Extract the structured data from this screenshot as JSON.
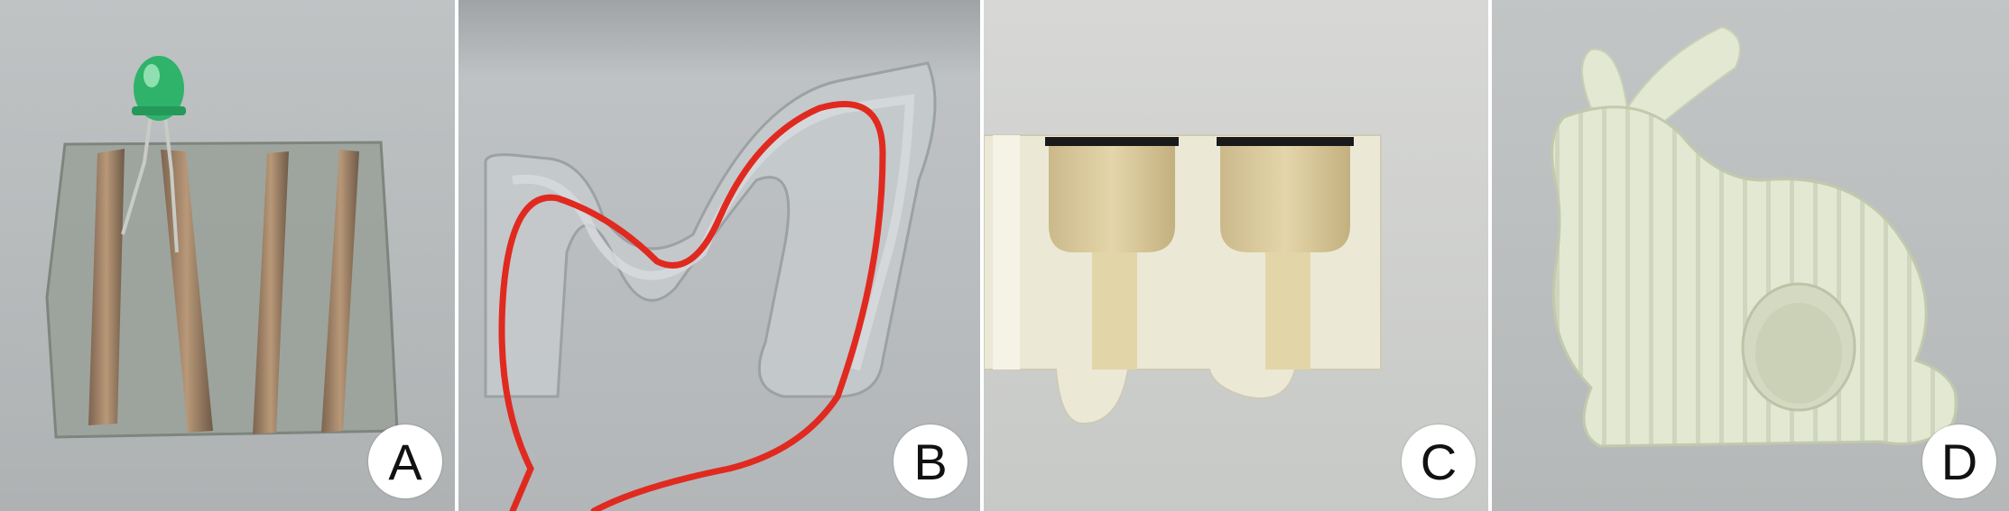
{
  "panels": [
    {
      "label": "A",
      "subject": "printed-circuit-with-led"
    },
    {
      "label": "B",
      "subject": "curved-channel-with-wire"
    },
    {
      "label": "C",
      "subject": "cross-section-cavities"
    },
    {
      "label": "D",
      "subject": "printed-bunny"
    }
  ],
  "colors": {
    "background": "#b9bcbd",
    "led": "#2fb36a",
    "copper": "#a88868",
    "wire": "#e02a20",
    "ivory": "#ece8d6",
    "bunny": "#e3e8d3"
  }
}
